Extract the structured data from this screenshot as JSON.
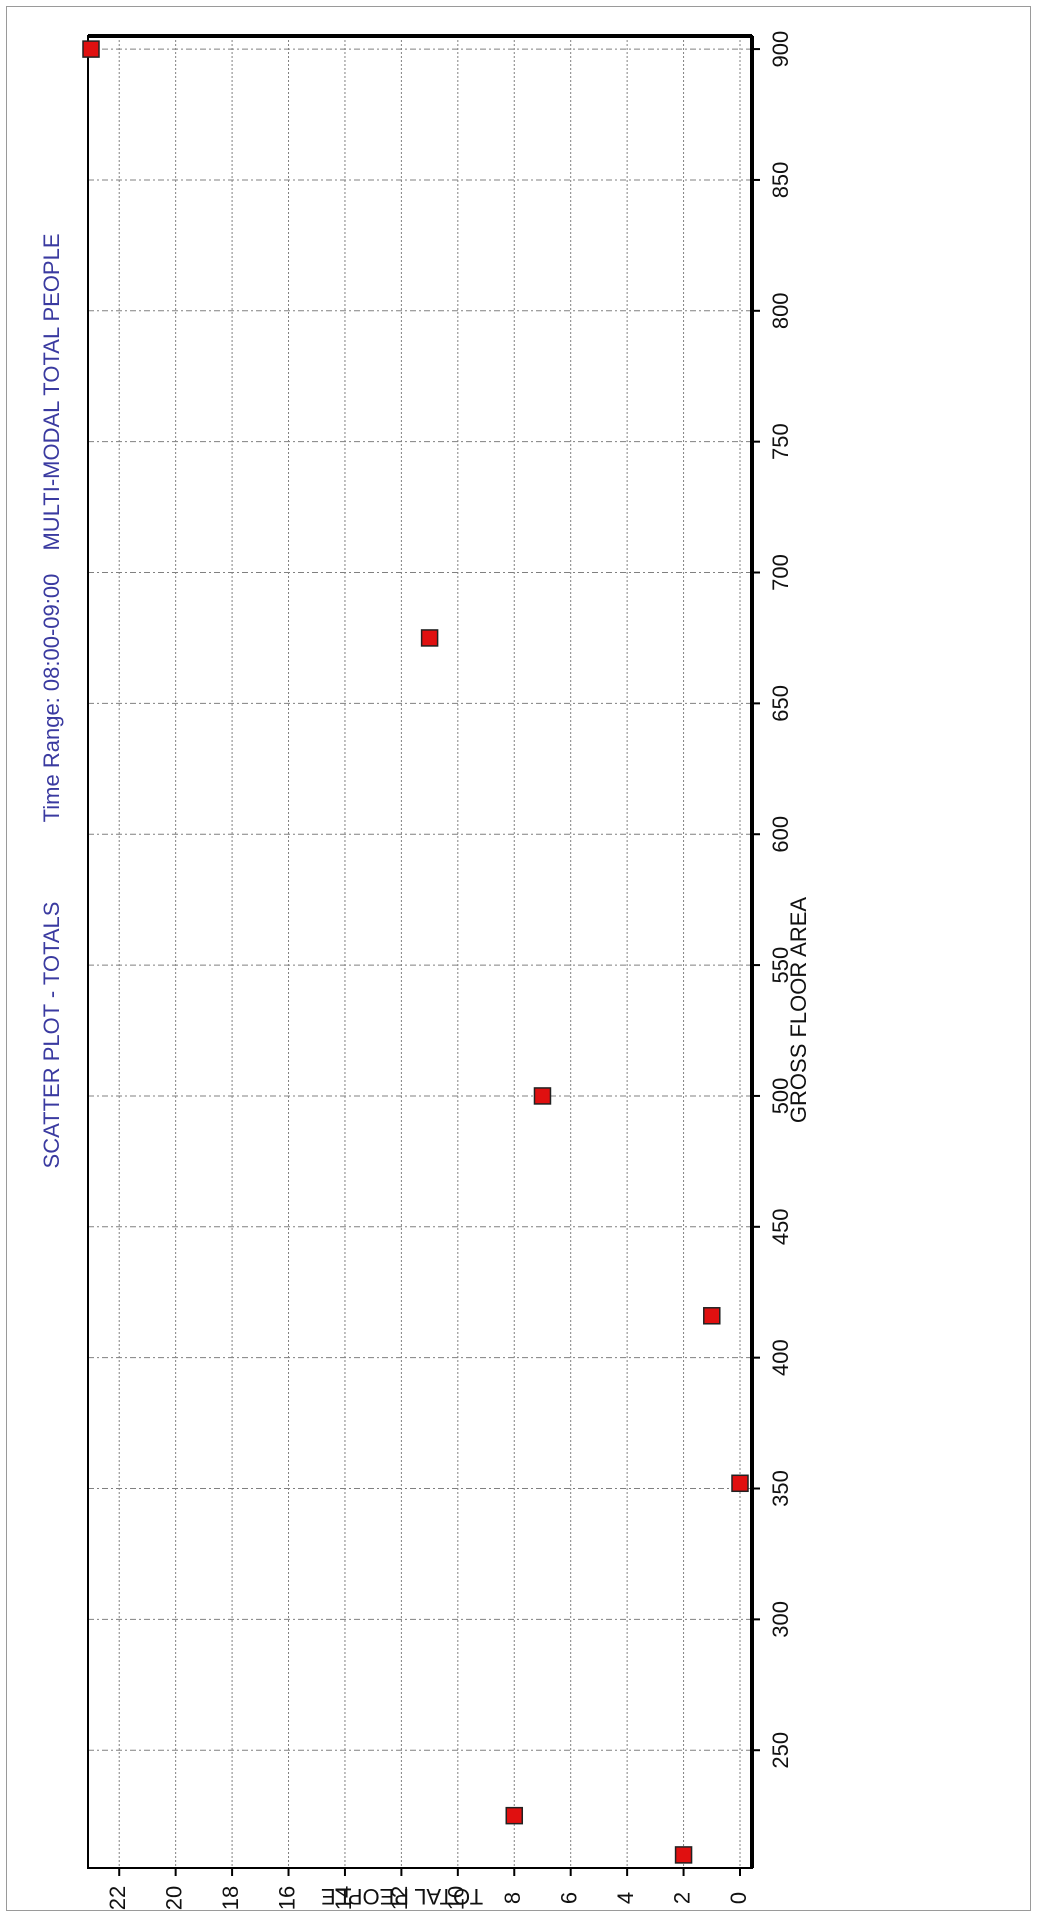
{
  "chart_data": {
    "type": "scatter",
    "title_parts": [
      "SCATTER PLOT - TOTALS",
      "Time Range: 08:00-09:00",
      "MULTI-MODAL  TOTAL PEOPLE"
    ],
    "xlabel": "GROSS FLOOR AREA",
    "ylabel": "TOTAL PEOPLE",
    "xlim": [
      205,
      905
    ],
    "ylim": [
      0,
      23
    ],
    "x_ticks": [
      250,
      300,
      350,
      400,
      450,
      500,
      550,
      600,
      650,
      700,
      750,
      800,
      850,
      900
    ],
    "y_ticks": [
      0,
      2,
      4,
      6,
      8,
      10,
      12,
      14,
      16,
      18,
      20,
      22
    ],
    "grid": true,
    "orientation": "rotated-90",
    "points": [
      {
        "x": 210,
        "y": 2
      },
      {
        "x": 225,
        "y": 8
      },
      {
        "x": 352,
        "y": 0
      },
      {
        "x": 416,
        "y": 1
      },
      {
        "x": 500,
        "y": 7
      },
      {
        "x": 675,
        "y": 11
      },
      {
        "x": 900,
        "y": 23
      }
    ],
    "marker_color": "#e01010",
    "marker_edge_color": "#222222",
    "title_color": "#3a3aa0"
  }
}
